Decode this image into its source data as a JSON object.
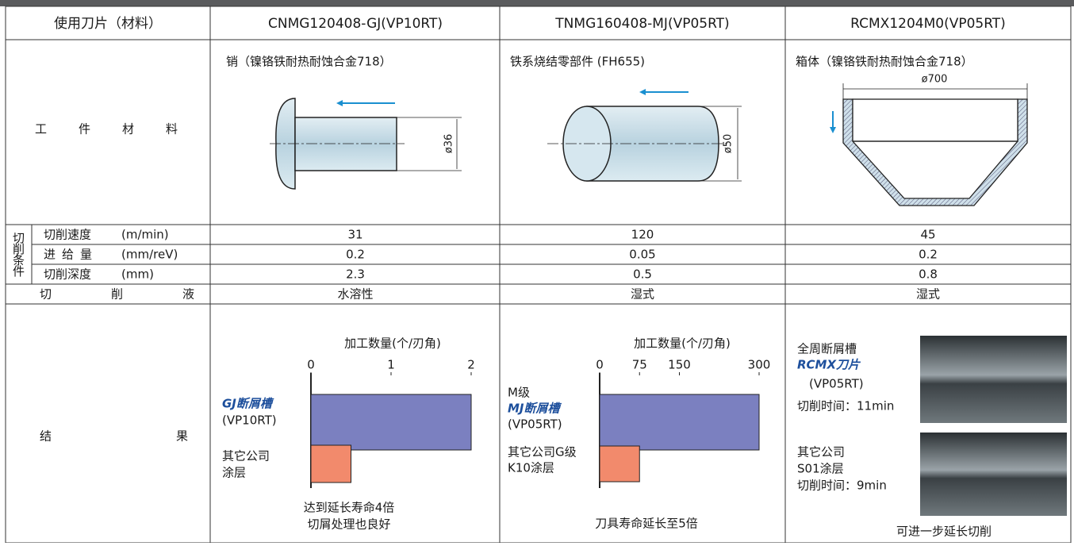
{
  "table": {
    "header": [
      "使用刀片（材料）",
      "CNMG120408-GJ(VP10RT)",
      "TNMG160408-MJ(VP05RT)",
      "RCMX1204M0(VP05RT)"
    ],
    "workpiece": {
      "label": "工件材料",
      "materials": [
        {
          "name": "销（镍铬铁耐热耐蚀合金718）",
          "dimension": "ø36"
        },
        {
          "name": "铁系烧结零部件 (FH655)",
          "dimension": "ø50"
        },
        {
          "name": "箱体（镍铬铁耐热耐蚀合金718）",
          "dimension": "ø700"
        }
      ]
    },
    "cutting_conditions": {
      "label": "切削条件",
      "rows": [
        {
          "label": "切削速度",
          "unit": "(m/min)",
          "values": [
            "31",
            "120",
            "45"
          ]
        },
        {
          "label": "进给量",
          "unit": "(mm/reV)",
          "values": [
            "0.2",
            "0.05",
            "0.2"
          ]
        },
        {
          "label": "切削深度",
          "unit": "(mm)",
          "values": [
            "2.3",
            "0.5",
            "0.8"
          ]
        }
      ]
    },
    "coolant": {
      "label": "切削液",
      "values": [
        "水溶性",
        "湿式",
        "湿式"
      ]
    },
    "results": {
      "label": "结果",
      "notes": [
        [
          "达到延长寿命4倍",
          "切屑处理也良好"
        ],
        [
          "刀具寿命延长至5倍"
        ],
        [
          "可进一步延长切削"
        ]
      ],
      "photos": [
        {
          "lines": [
            "全周断屑槽",
            "RCMX刀片",
            "(VP05RT)",
            "切削时间：11min"
          ]
        },
        {
          "lines": [
            "其它公司",
            "S01涂层",
            "切削时间：9min"
          ]
        }
      ]
    }
  },
  "chart_data": [
    {
      "type": "bar",
      "title": "加工数量(个/刃角)",
      "categories": [
        [
          "GJ断屑槽",
          "(VP10RT)"
        ],
        [
          "其它公司",
          "涂层"
        ]
      ],
      "values": [
        2,
        0.5
      ],
      "colors": [
        "#7b80c0",
        "#f28a6c"
      ],
      "xlim": [
        0,
        2
      ],
      "xticks": [
        0,
        1,
        2
      ]
    },
    {
      "type": "bar",
      "title": "加工数量(个/刃角)",
      "categories": [
        [
          "M级",
          "MJ断屑槽",
          "(VP05RT)"
        ],
        [
          "其它公司G级",
          "K10涂层"
        ]
      ],
      "values": [
        300,
        75
      ],
      "colors": [
        "#7b80c0",
        "#f28a6c"
      ],
      "xlim": [
        0,
        300
      ],
      "xticks": [
        0,
        75,
        150,
        300
      ]
    }
  ]
}
